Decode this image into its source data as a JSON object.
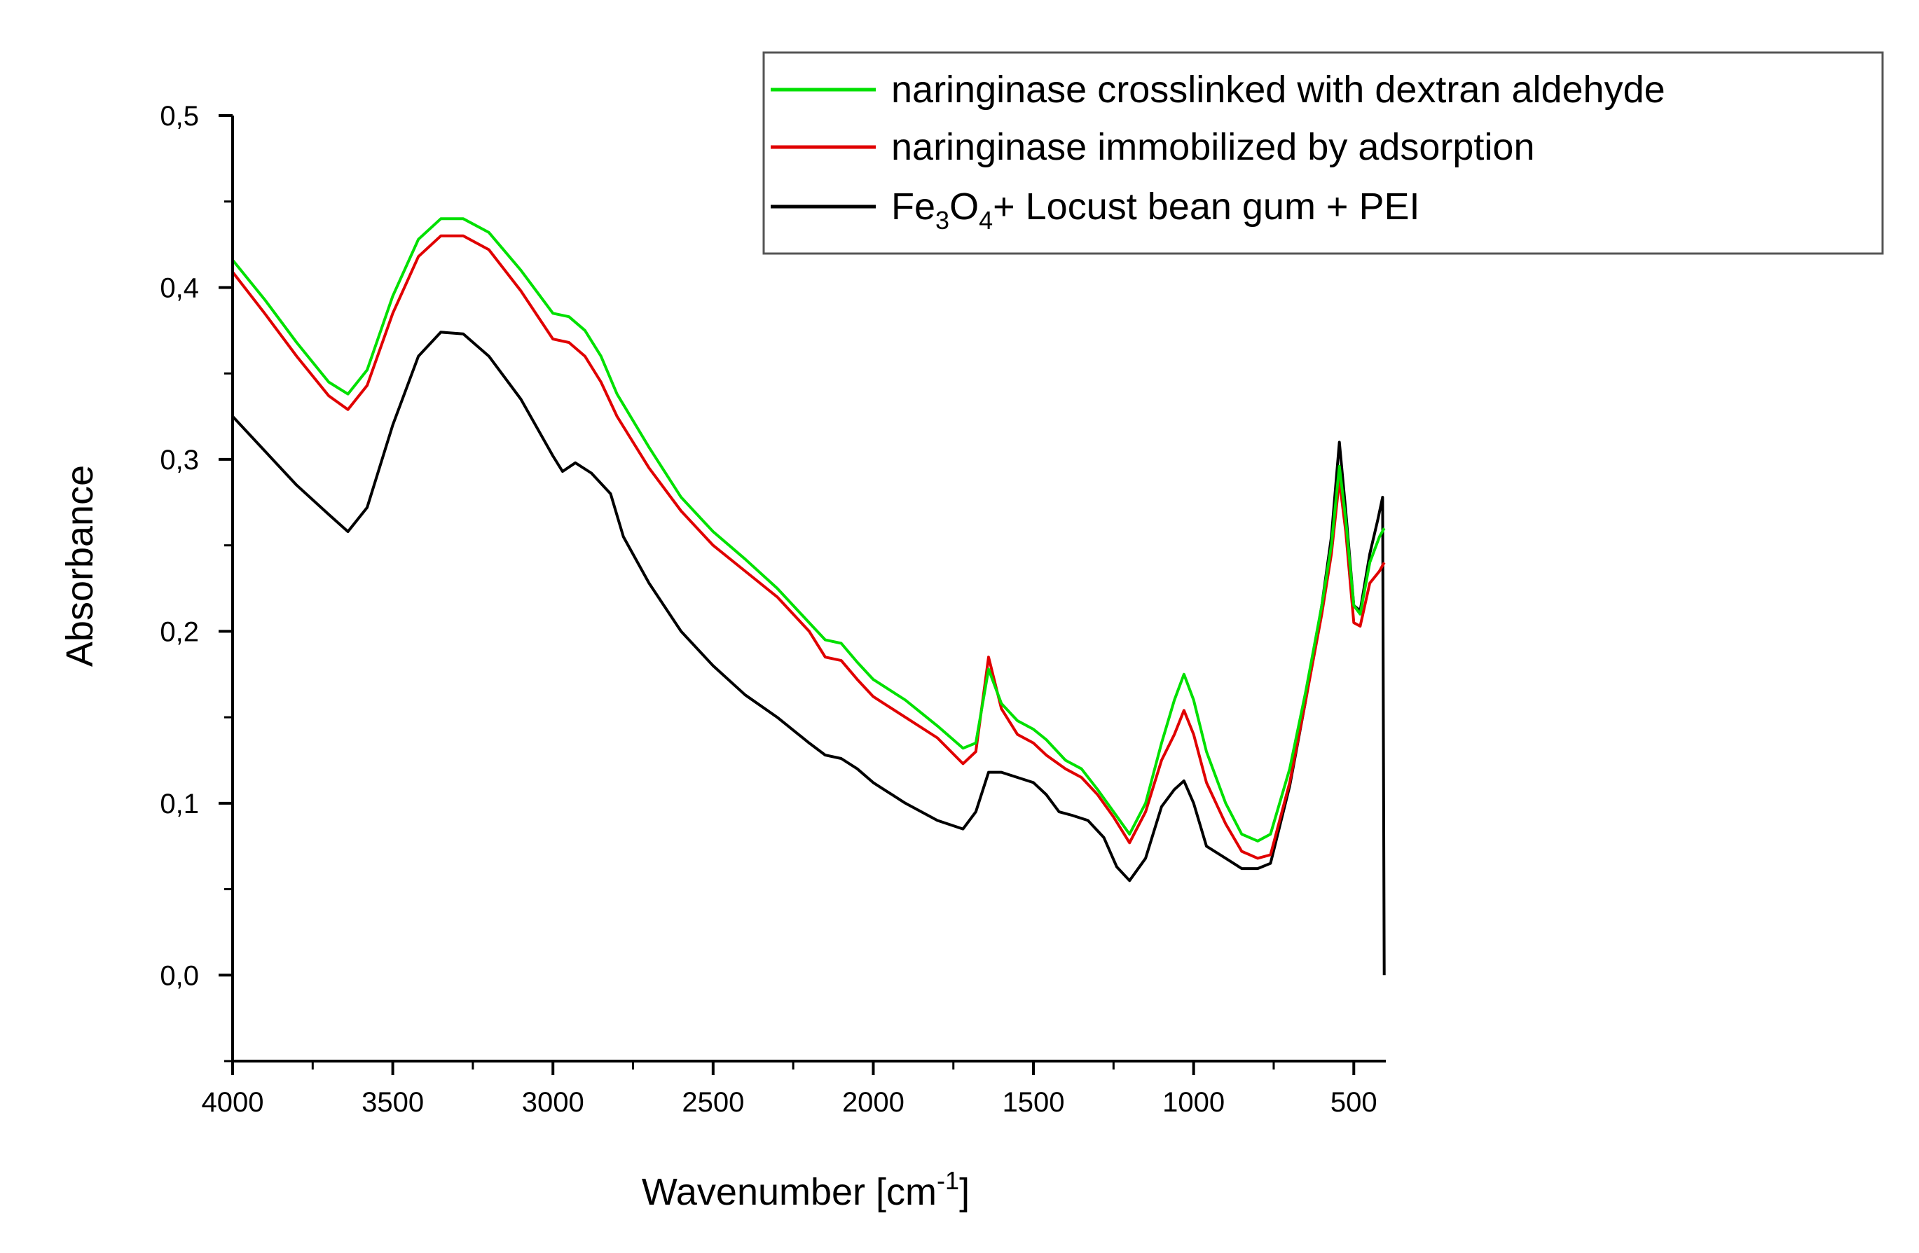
{
  "chart_data": {
    "type": "line",
    "title": "",
    "xlabel_text": "Wavenumber [cm",
    "xlabel_sup": "-1",
    "xlabel_close": "]",
    "ylabel": "Absorbance",
    "xlim": [
      4000,
      400
    ],
    "ylim": [
      -0.05,
      0.5
    ],
    "x_ticks": [
      4000,
      3500,
      3000,
      2500,
      2000,
      1500,
      1000,
      500
    ],
    "x_tick_labels": [
      "4000",
      "3500",
      "3000",
      "2500",
      "2000",
      "1500",
      "1000",
      "500"
    ],
    "y_ticks": [
      0.0,
      0.1,
      0.2,
      0.3,
      0.4,
      0.5
    ],
    "y_tick_labels": [
      "0,0",
      "0,1",
      "0,2",
      "0,3",
      "0,4",
      "0,5"
    ],
    "legend_position": "top-right",
    "series": [
      {
        "name": "naringinase crosslinked with dextran aldehyde",
        "color": "#00e000",
        "points": [
          [
            4000,
            0.416
          ],
          [
            3900,
            0.393
          ],
          [
            3800,
            0.368
          ],
          [
            3700,
            0.345
          ],
          [
            3640,
            0.338
          ],
          [
            3580,
            0.352
          ],
          [
            3500,
            0.395
          ],
          [
            3420,
            0.428
          ],
          [
            3350,
            0.44
          ],
          [
            3280,
            0.44
          ],
          [
            3200,
            0.432
          ],
          [
            3100,
            0.41
          ],
          [
            3000,
            0.385
          ],
          [
            2950,
            0.383
          ],
          [
            2900,
            0.375
          ],
          [
            2850,
            0.36
          ],
          [
            2800,
            0.338
          ],
          [
            2700,
            0.307
          ],
          [
            2600,
            0.278
          ],
          [
            2500,
            0.258
          ],
          [
            2400,
            0.242
          ],
          [
            2300,
            0.225
          ],
          [
            2200,
            0.205
          ],
          [
            2150,
            0.195
          ],
          [
            2100,
            0.193
          ],
          [
            2050,
            0.182
          ],
          [
            2000,
            0.172
          ],
          [
            1900,
            0.16
          ],
          [
            1800,
            0.145
          ],
          [
            1720,
            0.132
          ],
          [
            1680,
            0.135
          ],
          [
            1640,
            0.178
          ],
          [
            1600,
            0.158
          ],
          [
            1550,
            0.148
          ],
          [
            1500,
            0.143
          ],
          [
            1460,
            0.137
          ],
          [
            1400,
            0.125
          ],
          [
            1350,
            0.12
          ],
          [
            1300,
            0.108
          ],
          [
            1250,
            0.095
          ],
          [
            1200,
            0.082
          ],
          [
            1150,
            0.1
          ],
          [
            1100,
            0.135
          ],
          [
            1060,
            0.16
          ],
          [
            1030,
            0.175
          ],
          [
            1000,
            0.16
          ],
          [
            960,
            0.13
          ],
          [
            900,
            0.1
          ],
          [
            850,
            0.082
          ],
          [
            800,
            0.078
          ],
          [
            760,
            0.082
          ],
          [
            700,
            0.12
          ],
          [
            650,
            0.165
          ],
          [
            600,
            0.215
          ],
          [
            570,
            0.25
          ],
          [
            545,
            0.296
          ],
          [
            525,
            0.265
          ],
          [
            500,
            0.215
          ],
          [
            480,
            0.21
          ],
          [
            450,
            0.24
          ],
          [
            420,
            0.255
          ],
          [
            405,
            0.26
          ]
        ]
      },
      {
        "name": "naringinase immobilized by adsorption",
        "color": "#e00000",
        "points": [
          [
            4000,
            0.409
          ],
          [
            3900,
            0.385
          ],
          [
            3800,
            0.36
          ],
          [
            3700,
            0.337
          ],
          [
            3640,
            0.329
          ],
          [
            3580,
            0.343
          ],
          [
            3500,
            0.385
          ],
          [
            3420,
            0.418
          ],
          [
            3350,
            0.43
          ],
          [
            3280,
            0.43
          ],
          [
            3200,
            0.422
          ],
          [
            3100,
            0.398
          ],
          [
            3000,
            0.37
          ],
          [
            2950,
            0.368
          ],
          [
            2900,
            0.36
          ],
          [
            2850,
            0.345
          ],
          [
            2800,
            0.325
          ],
          [
            2700,
            0.295
          ],
          [
            2600,
            0.27
          ],
          [
            2500,
            0.25
          ],
          [
            2400,
            0.235
          ],
          [
            2300,
            0.22
          ],
          [
            2200,
            0.2
          ],
          [
            2150,
            0.185
          ],
          [
            2100,
            0.183
          ],
          [
            2050,
            0.172
          ],
          [
            2000,
            0.162
          ],
          [
            1900,
            0.15
          ],
          [
            1800,
            0.138
          ],
          [
            1720,
            0.123
          ],
          [
            1680,
            0.13
          ],
          [
            1640,
            0.185
          ],
          [
            1600,
            0.155
          ],
          [
            1550,
            0.14
          ],
          [
            1500,
            0.135
          ],
          [
            1460,
            0.128
          ],
          [
            1400,
            0.12
          ],
          [
            1350,
            0.115
          ],
          [
            1300,
            0.105
          ],
          [
            1250,
            0.092
          ],
          [
            1200,
            0.077
          ],
          [
            1150,
            0.095
          ],
          [
            1100,
            0.125
          ],
          [
            1060,
            0.14
          ],
          [
            1030,
            0.154
          ],
          [
            1000,
            0.14
          ],
          [
            960,
            0.112
          ],
          [
            900,
            0.088
          ],
          [
            850,
            0.072
          ],
          [
            800,
            0.068
          ],
          [
            760,
            0.07
          ],
          [
            700,
            0.112
          ],
          [
            650,
            0.16
          ],
          [
            600,
            0.21
          ],
          [
            570,
            0.245
          ],
          [
            545,
            0.288
          ],
          [
            525,
            0.258
          ],
          [
            500,
            0.205
          ],
          [
            480,
            0.203
          ],
          [
            450,
            0.228
          ],
          [
            420,
            0.235
          ],
          [
            405,
            0.24
          ]
        ]
      },
      {
        "name_main": "Fe",
        "name_sub1": "3",
        "name_mid": "O",
        "name_sub2": "4",
        "name_tail": "+ Locust bean gum + PEI",
        "color": "#000000",
        "points": [
          [
            4000,
            0.325
          ],
          [
            3900,
            0.305
          ],
          [
            3800,
            0.285
          ],
          [
            3700,
            0.268
          ],
          [
            3640,
            0.258
          ],
          [
            3580,
            0.272
          ],
          [
            3500,
            0.32
          ],
          [
            3420,
            0.36
          ],
          [
            3350,
            0.374
          ],
          [
            3280,
            0.373
          ],
          [
            3200,
            0.36
          ],
          [
            3100,
            0.335
          ],
          [
            3000,
            0.302
          ],
          [
            2970,
            0.293
          ],
          [
            2930,
            0.298
          ],
          [
            2880,
            0.292
          ],
          [
            2820,
            0.28
          ],
          [
            2780,
            0.255
          ],
          [
            2700,
            0.228
          ],
          [
            2600,
            0.2
          ],
          [
            2500,
            0.18
          ],
          [
            2400,
            0.163
          ],
          [
            2300,
            0.15
          ],
          [
            2200,
            0.135
          ],
          [
            2150,
            0.128
          ],
          [
            2100,
            0.126
          ],
          [
            2050,
            0.12
          ],
          [
            2000,
            0.112
          ],
          [
            1900,
            0.1
          ],
          [
            1800,
            0.09
          ],
          [
            1720,
            0.085
          ],
          [
            1680,
            0.095
          ],
          [
            1640,
            0.118
          ],
          [
            1600,
            0.118
          ],
          [
            1550,
            0.115
          ],
          [
            1500,
            0.112
          ],
          [
            1460,
            0.105
          ],
          [
            1420,
            0.095
          ],
          [
            1380,
            0.093
          ],
          [
            1330,
            0.09
          ],
          [
            1280,
            0.08
          ],
          [
            1240,
            0.063
          ],
          [
            1200,
            0.055
          ],
          [
            1150,
            0.068
          ],
          [
            1100,
            0.098
          ],
          [
            1060,
            0.108
          ],
          [
            1030,
            0.113
          ],
          [
            1000,
            0.1
          ],
          [
            960,
            0.075
          ],
          [
            900,
            0.068
          ],
          [
            850,
            0.062
          ],
          [
            800,
            0.062
          ],
          [
            760,
            0.065
          ],
          [
            700,
            0.11
          ],
          [
            650,
            0.16
          ],
          [
            600,
            0.215
          ],
          [
            570,
            0.255
          ],
          [
            545,
            0.31
          ],
          [
            525,
            0.27
          ],
          [
            500,
            0.215
          ],
          [
            480,
            0.212
          ],
          [
            450,
            0.245
          ],
          [
            425,
            0.265
          ],
          [
            410,
            0.278
          ],
          [
            405,
            0.0
          ]
        ]
      }
    ]
  }
}
